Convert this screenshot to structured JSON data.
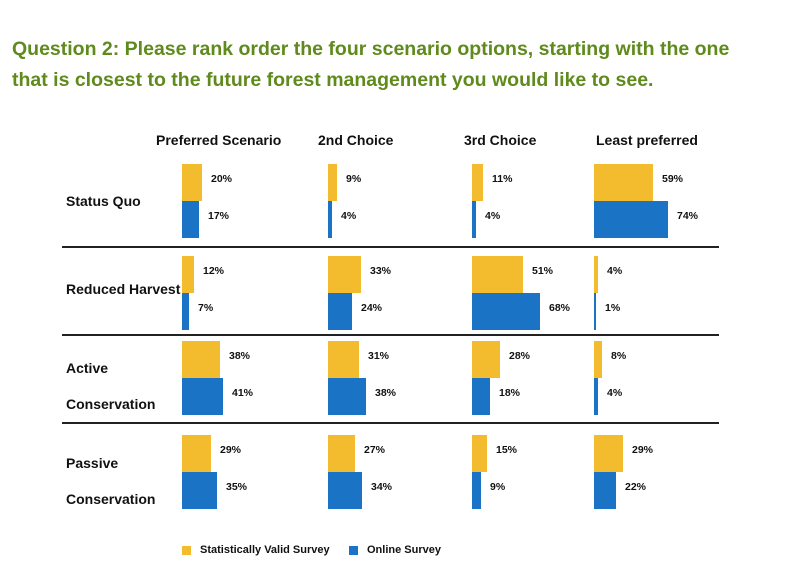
{
  "title_lines": [
    "Question 2: Please rank order the four scenario options, starting with the one",
    "that is closest to the future forest management you would like to see."
  ],
  "colors": {
    "title": "#5f8a1c",
    "statistically_valid": "#f2bc2e",
    "online": "#1a73c5"
  },
  "chart_data": {
    "type": "bar",
    "columns": [
      "Preferred Scenario",
      "2nd Choice",
      "3rd Choice",
      "Least preferred"
    ],
    "rows": [
      {
        "label_lines": [
          "Status Quo"
        ],
        "series": [
          {
            "name": "Statistically Valid Survey",
            "values": [
              20,
              9,
              11,
              59
            ],
            "labels": [
              "20%",
              "9%",
              "11%",
              "59%"
            ]
          },
          {
            "name": "Online Survey",
            "values": [
              17,
              4,
              4,
              74
            ],
            "labels": [
              "17%",
              "4%",
              "4%",
              "74%"
            ]
          }
        ]
      },
      {
        "label_lines": [
          "Reduced Harvest"
        ],
        "series": [
          {
            "name": "Statistically Valid Survey",
            "values": [
              12,
              33,
              51,
              4
            ],
            "labels": [
              "12%",
              "33%",
              "51%",
              "4%"
            ]
          },
          {
            "name": "Online Survey",
            "values": [
              7,
              24,
              68,
              1
            ],
            "labels": [
              "7%",
              "24%",
              "68%",
              "1%"
            ]
          }
        ]
      },
      {
        "label_lines": [
          "Active",
          "Conservation"
        ],
        "series": [
          {
            "name": "Statistically Valid Survey",
            "values": [
              38,
              31,
              28,
              8
            ],
            "labels": [
              "38%",
              "31%",
              "28%",
              "8%"
            ]
          },
          {
            "name": "Online Survey",
            "values": [
              41,
              38,
              18,
              4
            ],
            "labels": [
              "41%",
              "38%",
              "18%",
              "4%"
            ]
          }
        ]
      },
      {
        "label_lines": [
          "Passive",
          "Conservation"
        ],
        "series": [
          {
            "name": "Statistically Valid Survey",
            "values": [
              29,
              27,
              15,
              29
            ],
            "labels": [
              "29%",
              "27%",
              "15%",
              "29%"
            ]
          },
          {
            "name": "Online Survey",
            "values": [
              35,
              34,
              9,
              22
            ],
            "labels": [
              "35%",
              "34%",
              "9%",
              "22%"
            ]
          }
        ]
      }
    ],
    "legend": [
      {
        "name": "Statistically Valid Survey",
        "color": "#f2bc2e"
      },
      {
        "name": "Online Survey",
        "color": "#1a73c5"
      }
    ],
    "legend_placement": "bottom",
    "xlim": [
      0,
      100
    ]
  }
}
